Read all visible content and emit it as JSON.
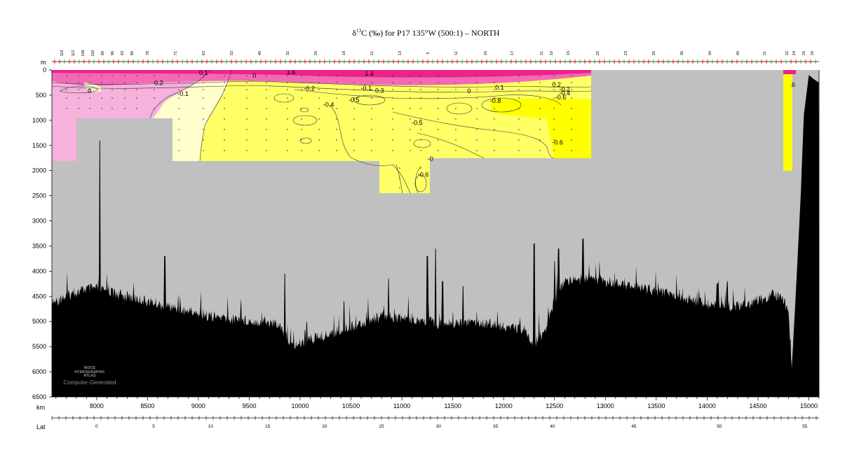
{
  "chart_data": {
    "type": "contour-section",
    "title": {
      "prefix": "δ",
      "superscript": "13",
      "text": "C (‰) for P17 135°W (500:1) – NORTH"
    },
    "y_axis": {
      "unit_label": "m",
      "ylim": [
        0,
        6500
      ],
      "reversed": true,
      "ticks": [
        0,
        500,
        1000,
        1500,
        2000,
        2500,
        3000,
        3500,
        4000,
        4500,
        5000,
        5500,
        6000,
        6500
      ]
    },
    "x_axis": {
      "unit_label": "km",
      "xlim": [
        7560,
        15100
      ],
      "ticks": [
        8000,
        8500,
        9000,
        9500,
        10000,
        10500,
        11000,
        11500,
        12000,
        12500,
        13000,
        13500,
        14000,
        14500,
        15000
      ]
    },
    "lat_axis": {
      "unit_label": "Lat",
      "ticks": [
        {
          "km": 8000,
          "label": "0"
        },
        {
          "km": 8560,
          "label": "5"
        },
        {
          "km": 9120,
          "label": "10"
        },
        {
          "km": 9680,
          "label": "15"
        },
        {
          "km": 10240,
          "label": "20"
        },
        {
          "km": 10800,
          "label": "25"
        },
        {
          "km": 11360,
          "label": "30"
        },
        {
          "km": 11920,
          "label": "35"
        },
        {
          "km": 12480,
          "label": "40"
        },
        {
          "km": 13280,
          "label": "45"
        },
        {
          "km": 14120,
          "label": "50"
        },
        {
          "km": 14960,
          "label": "55"
        }
      ]
    },
    "station_labels": [
      "118",
      "112",
      "108",
      "102",
      "98",
      "96",
      "93",
      "89",
      "78",
      "71",
      "63",
      "53",
      "40",
      "32",
      "20",
      "18",
      "11",
      "13",
      "5",
      "11",
      "16",
      "17",
      "11",
      "10",
      "15",
      "22",
      "23",
      "26",
      "30",
      "34",
      "40",
      "21",
      "22",
      "24",
      "28",
      "29"
    ],
    "contour_labels": [
      {
        "text": "1.6",
        "km": 9910,
        "depth": 40
      },
      {
        "text": "1.4",
        "km": 10680,
        "depth": 70
      },
      {
        "text": "0.1",
        "km": 9050,
        "depth": 55
      },
      {
        "text": "0",
        "km": 9550,
        "depth": 110
      },
      {
        "text": "0",
        "km": 7930,
        "depth": 420
      },
      {
        "text": "0.2",
        "km": 8610,
        "depth": 260
      },
      {
        "text": "-0.1",
        "km": 8850,
        "depth": 470
      },
      {
        "text": "-0.2",
        "km": 10090,
        "depth": 370
      },
      {
        "text": "-0.1",
        "km": 10650,
        "depth": 360
      },
      {
        "text": "0.3",
        "km": 10780,
        "depth": 410
      },
      {
        "text": "0",
        "km": 11660,
        "depth": 420
      },
      {
        "text": "0.1",
        "km": 11960,
        "depth": 350
      },
      {
        "text": "-0.4",
        "km": 10280,
        "depth": 690
      },
      {
        "text": "-0.5",
        "km": 10530,
        "depth": 600
      },
      {
        "text": "-0.8",
        "km": 11920,
        "depth": 610
      },
      {
        "text": "-0.5",
        "km": 11150,
        "depth": 1050
      },
      {
        "text": "-0.6",
        "km": 12530,
        "depth": 1440
      },
      {
        "text": "-0.6",
        "km": 11210,
        "depth": 2080
      },
      {
        "text": "-0",
        "km": 11280,
        "depth": 1770
      },
      {
        "text": "0.2",
        "km": 12520,
        "depth": 290
      },
      {
        "text": "-0.2",
        "km": 12600,
        "depth": 380
      },
      {
        "text": "-0.4",
        "km": 12600,
        "depth": 460
      },
      {
        "text": "-0.6",
        "km": 12560,
        "depth": 540
      },
      {
        "text": ".6",
        "km": 14840,
        "depth": 290
      }
    ],
    "legend": "none",
    "colors": {
      "pink_high": "#ee2288",
      "pink_mid": "#f26ab6",
      "pink_light": "#f6b1dc",
      "cream": "#ffffcc",
      "yellow_light": "#ffff66",
      "yellow": "#ffff00",
      "no_data": "#c0c0c0",
      "bathymetry": "#000000"
    }
  },
  "watermark": {
    "line1": "WOCE",
    "line2": "HYDROGRAPHIC",
    "line3": "ATLAS",
    "computer_generated": "Computer Generated"
  }
}
